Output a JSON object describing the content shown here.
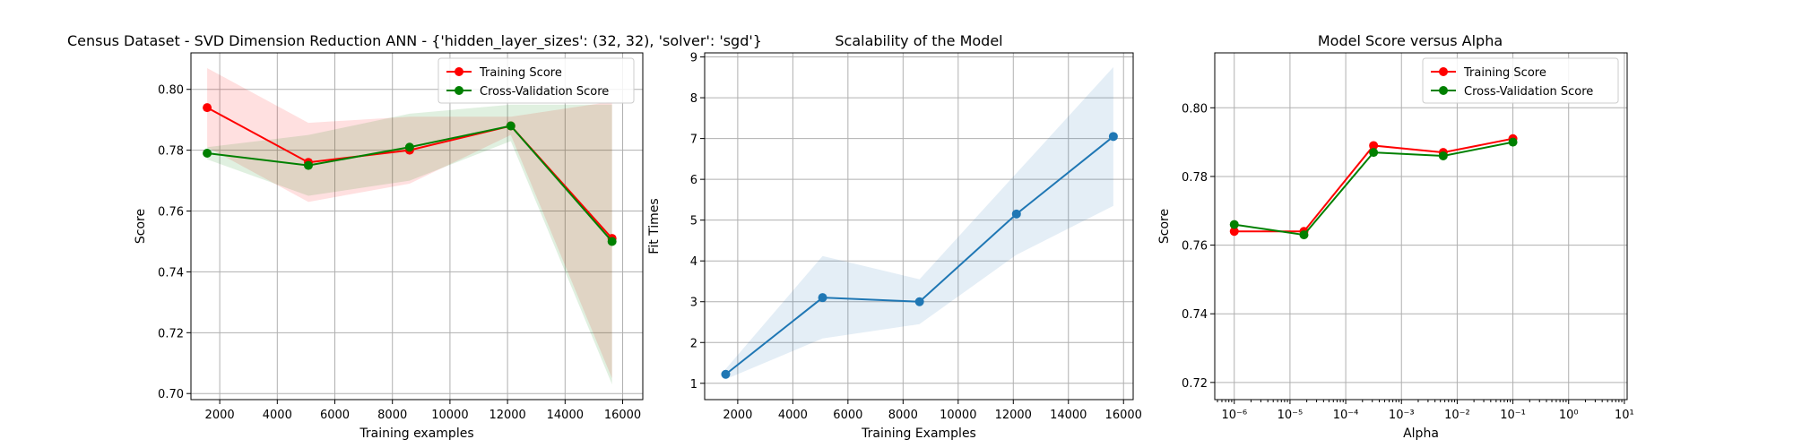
{
  "figure": {
    "suptitle": "Census Dataset - SVD Dimension Reduction ANN - {'hidden_layer_sizes': (32, 32), 'solver': 'sgd'}"
  },
  "chart_data": [
    {
      "type": "line",
      "title": "",
      "xlabel": "Training examples",
      "ylabel": "Score",
      "xlim": [
        1000,
        16700
      ],
      "ylim": [
        0.698,
        0.812
      ],
      "xticks": [
        2000,
        4000,
        6000,
        8000,
        10000,
        12000,
        14000,
        16000
      ],
      "xtick_labels": [
        "2000",
        "4000",
        "6000",
        "8000",
        "10000",
        "12000",
        "14000",
        "16000"
      ],
      "yticks": [
        0.7,
        0.72,
        0.74,
        0.76,
        0.78,
        0.8
      ],
      "ytick_labels": [
        "0.70",
        "0.72",
        "0.74",
        "0.76",
        "0.78",
        "0.80"
      ],
      "grid": true,
      "legend_position": "upper-right",
      "x": [
        1563,
        5080,
        8597,
        12114,
        15631
      ],
      "series": [
        {
          "name": "Training Score",
          "color": "#ff0000",
          "values": [
            0.794,
            0.776,
            0.78,
            0.788,
            0.751
          ],
          "band_lower": [
            0.781,
            0.763,
            0.769,
            0.785,
            0.705
          ],
          "band_upper": [
            0.807,
            0.789,
            0.791,
            0.791,
            0.796
          ]
        },
        {
          "name": "Cross-Validation Score",
          "color": "#008000",
          "values": [
            0.779,
            0.775,
            0.781,
            0.788,
            0.75
          ],
          "band_lower": [
            0.777,
            0.765,
            0.77,
            0.783,
            0.703
          ],
          "band_upper": [
            0.781,
            0.785,
            0.792,
            0.795,
            0.795
          ]
        }
      ]
    },
    {
      "type": "line",
      "title": "Scalability of the Model",
      "xlabel": "Training Examples",
      "ylabel": "Fit Times",
      "xlim": [
        800,
        16350
      ],
      "ylim": [
        0.6,
        9.1
      ],
      "xticks": [
        2000,
        4000,
        6000,
        8000,
        10000,
        12000,
        14000,
        16000
      ],
      "xtick_labels": [
        "2000",
        "4000",
        "6000",
        "8000",
        "10000",
        "12000",
        "14000",
        "16000"
      ],
      "yticks": [
        1,
        2,
        3,
        4,
        5,
        6,
        7,
        8,
        9
      ],
      "ytick_labels": [
        "1",
        "2",
        "3",
        "4",
        "5",
        "6",
        "7",
        "8",
        "9"
      ],
      "grid": true,
      "x": [
        1563,
        5080,
        8597,
        12114,
        15631
      ],
      "series": [
        {
          "color": "#1f77b4",
          "values": [
            1.22,
            3.1,
            3.0,
            5.15,
            7.05
          ],
          "band_lower": [
            1.1,
            2.1,
            2.45,
            4.15,
            5.35
          ],
          "band_upper": [
            1.35,
            4.12,
            3.55,
            6.15,
            8.75
          ]
        }
      ]
    },
    {
      "type": "line",
      "title": "Model Score versus Alpha",
      "xlabel": "Alpha",
      "ylabel": "Score",
      "xscale": "log",
      "xlim_log10": [
        -6.35,
        1.05
      ],
      "ylim": [
        0.715,
        0.816
      ],
      "xticks_log10": [
        -6,
        -5,
        -4,
        -3,
        -2,
        -1,
        0,
        1
      ],
      "xtick_labels": [
        "10⁻⁶",
        "10⁻⁵",
        "10⁻⁴",
        "10⁻³",
        "10⁻²",
        "10⁻¹",
        "10⁰",
        "10¹"
      ],
      "yticks": [
        0.72,
        0.74,
        0.76,
        0.78,
        0.8
      ],
      "ytick_labels": [
        "0.72",
        "0.74",
        "0.76",
        "0.78",
        "0.80"
      ],
      "grid": true,
      "legend_position": "upper-right",
      "x": [
        1e-06,
        1.78e-05,
        0.000316,
        0.00562,
        0.1
      ],
      "series": [
        {
          "name": "Training Score",
          "color": "#ff0000",
          "values": [
            0.764,
            0.764,
            0.789,
            0.787,
            0.791
          ]
        },
        {
          "name": "Cross-Validation Score",
          "color": "#008000",
          "values": [
            0.766,
            0.763,
            0.787,
            0.786,
            0.79
          ]
        }
      ]
    }
  ]
}
